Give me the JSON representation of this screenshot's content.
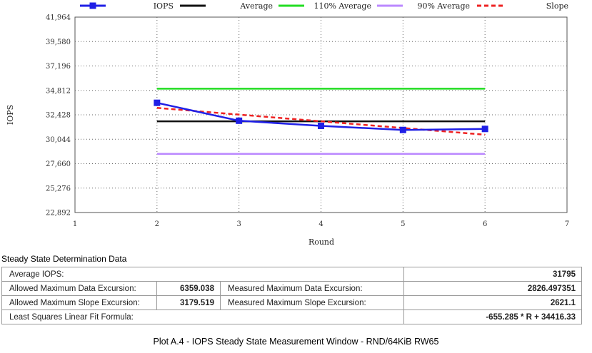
{
  "chart_data": {
    "type": "line",
    "xlabel": "Round",
    "ylabel": "IOPS",
    "xlim": [
      1,
      7
    ],
    "ylim": [
      22892,
      41964
    ],
    "x_ticks": [
      "1",
      "2",
      "3",
      "4",
      "5",
      "6",
      "7"
    ],
    "y_ticks": [
      "41,964",
      "39,580",
      "37,196",
      "34,812",
      "32,428",
      "30,044",
      "27,660",
      "25,276",
      "22,892"
    ],
    "grid": "dotted",
    "legend_position": "top",
    "legend": [
      {
        "name": "IOPS",
        "color": "#1f1fe6",
        "style": "line-square"
      },
      {
        "name": "Average",
        "color": "#111111",
        "style": "line"
      },
      {
        "name": "110% Average",
        "color": "#22dd22",
        "style": "line"
      },
      {
        "name": "90% Average",
        "color": "#bb88ff",
        "style": "line"
      },
      {
        "name": "Slope",
        "color": "#ee2222",
        "style": "dashed"
      }
    ],
    "series": [
      {
        "name": "IOPS",
        "x": [
          2,
          3,
          4,
          5,
          6
        ],
        "y": [
          33600,
          31850,
          31350,
          30950,
          31050
        ]
      },
      {
        "name": "Average",
        "x": [
          2,
          6
        ],
        "y": [
          31795,
          31795
        ]
      },
      {
        "name": "110% Average",
        "x": [
          2,
          6
        ],
        "y": [
          34975,
          34975
        ]
      },
      {
        "name": "90% Average",
        "x": [
          2,
          6
        ],
        "y": [
          28615,
          28615
        ]
      },
      {
        "name": "Slope",
        "x": [
          2,
          6
        ],
        "y": [
          33106,
          30485
        ]
      }
    ]
  },
  "table": {
    "title": "Steady State Determination Data",
    "average_label": "Average IOPS:",
    "average_value": "31795",
    "allowed_data_label": "Allowed Maximum Data Excursion:",
    "allowed_data_value": "6359.038",
    "measured_data_label": "Measured Maximum Data Excursion:",
    "measured_data_value": "2826.497351",
    "allowed_slope_label": "Allowed Maximum Slope Excursion:",
    "allowed_slope_value": "3179.519",
    "measured_slope_label": "Measured Maximum Slope Excursion:",
    "measured_slope_value": "2621.1",
    "formula_label": "Least Squares Linear Fit Formula:",
    "formula_value": "-655.285 * R + 34416.33"
  },
  "caption": "Plot A.4 - IOPS Steady State Measurement Window - RND/64KiB RW65"
}
